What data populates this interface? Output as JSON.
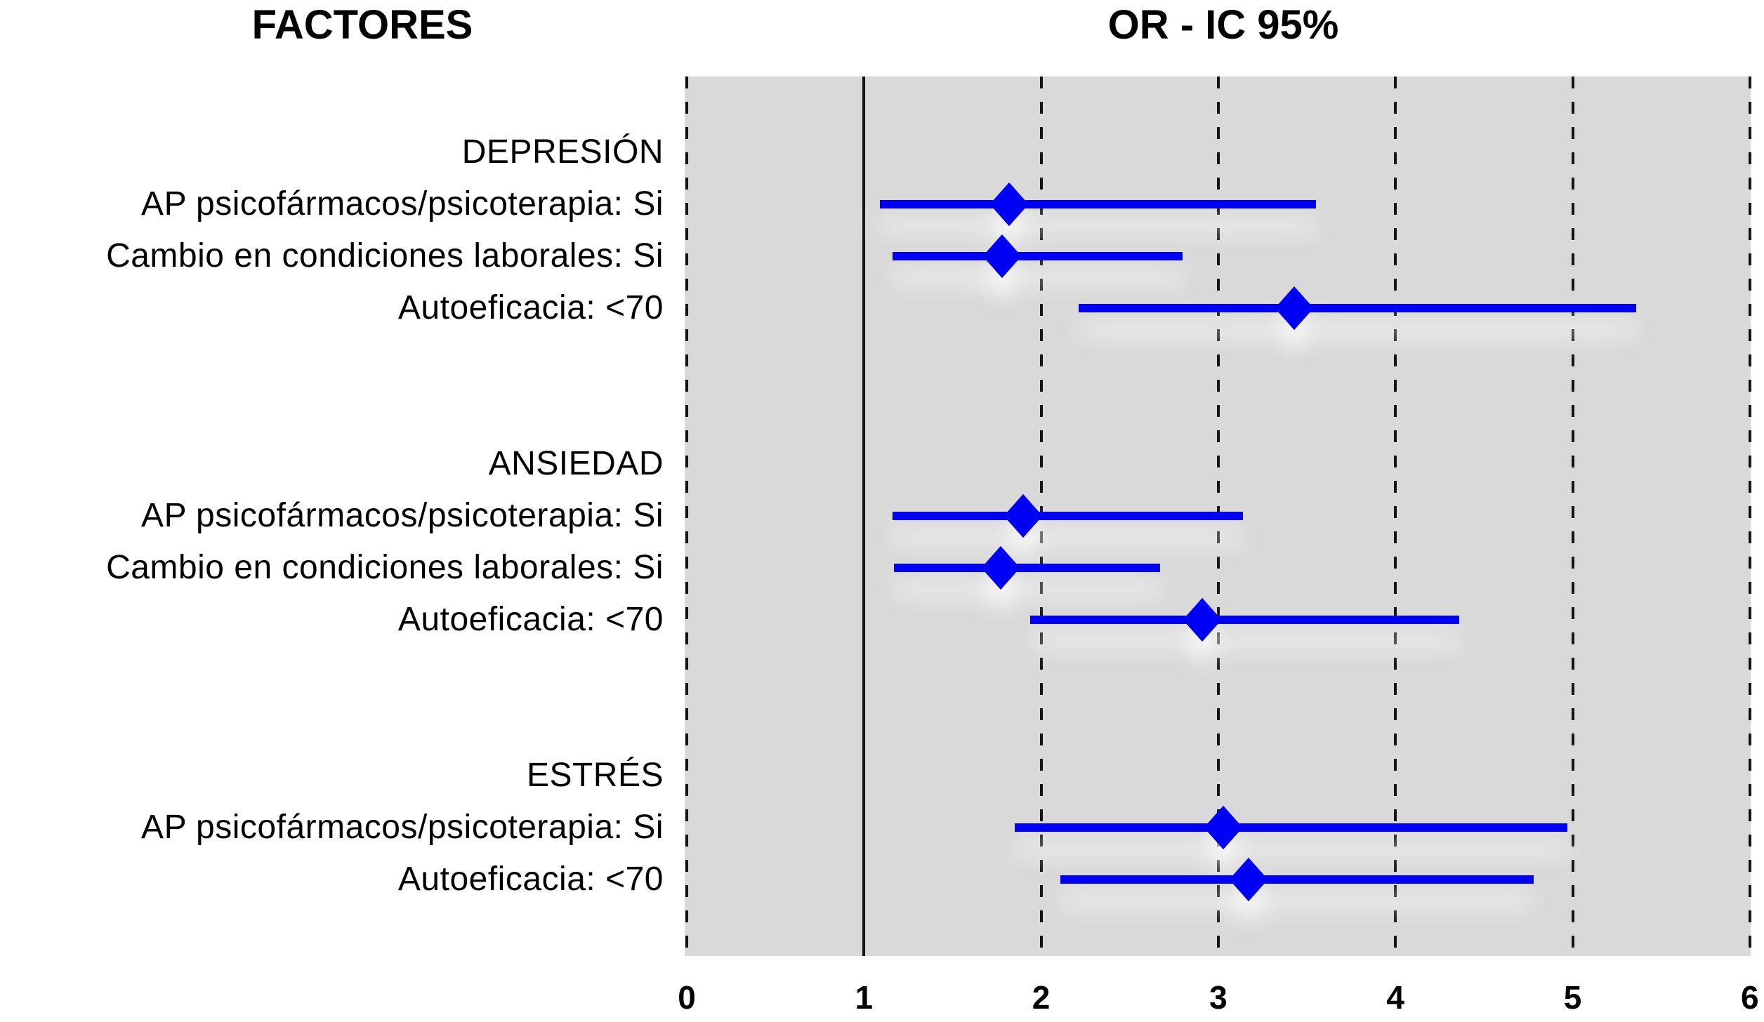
{
  "headers": {
    "left": "FACTORES",
    "right": "OR - IC 95%"
  },
  "chart_data": {
    "type": "scatter",
    "subtype": "forest-plot",
    "title": "OR - IC 95%",
    "row_header": "FACTORES",
    "xlabel": "",
    "ylabel": "",
    "xlim": [
      0,
      6
    ],
    "x_ticks": [
      0,
      1,
      2,
      3,
      4,
      5,
      6
    ],
    "reference_line_x": 1,
    "grid": "dashed-vertical",
    "marker": "diamond",
    "marker_color": "#0000f5",
    "plot_background": "#d9d9d9",
    "gridline_color": "#141414",
    "groups": [
      {
        "title": "DEPRESIÓN",
        "items": [
          {
            "label": "AP psicofármacos/psicoterapia: Si",
            "or": 1.82,
            "ci_low": 1.09,
            "ci_high": 3.55
          },
          {
            "label": "Cambio en condiciones laborales: Si",
            "or": 1.78,
            "ci_low": 1.16,
            "ci_high": 2.8
          },
          {
            "label": "Autoeficacia: <70",
            "or": 3.43,
            "ci_low": 2.21,
            "ci_high": 5.36
          }
        ]
      },
      {
        "title": "ANSIEDAD",
        "items": [
          {
            "label": "AP psicofármacos/psicoterapia: Si",
            "or": 1.9,
            "ci_low": 1.16,
            "ci_high": 3.14
          },
          {
            "label": "Cambio en condiciones laborales: Si",
            "or": 1.77,
            "ci_low": 1.17,
            "ci_high": 2.67
          },
          {
            "label": "Autoeficacia: <70",
            "or": 2.91,
            "ci_low": 1.94,
            "ci_high": 4.36
          }
        ]
      },
      {
        "title": "ESTRÉS",
        "items": [
          {
            "label": "AP psicofármacos/psicoterapia: Si",
            "or": 3.03,
            "ci_low": 1.85,
            "ci_high": 4.97
          },
          {
            "label": "Autoeficacia: <70",
            "or": 3.17,
            "ci_low": 2.11,
            "ci_high": 4.78
          }
        ]
      }
    ]
  }
}
